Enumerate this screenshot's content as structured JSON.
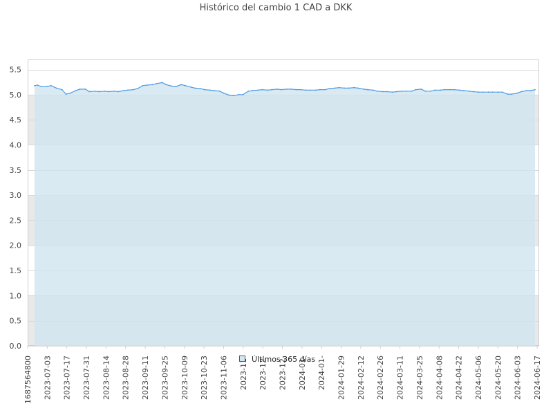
{
  "chart_data": {
    "type": "area",
    "title": "Histórico del cambio 1 CAD a DKK",
    "xlabel": "",
    "ylabel": "",
    "ylim": [
      0,
      5.5
    ],
    "yticks": [
      "0.0",
      "0.5",
      "1.0",
      "1.5",
      "2.0",
      "2.5",
      "3.0",
      "3.5",
      "4.0",
      "4.5",
      "5.0",
      "5.5"
    ],
    "xticks": [
      "1687564800",
      "2023-07-03",
      "2023-07-17",
      "2023-07-31",
      "2023-08-14",
      "2023-08-28",
      "2023-09-11",
      "2023-09-25",
      "2023-10-09",
      "2023-10-23",
      "2023-11-06",
      "2023-11-",
      "2023-12-",
      "2023-12-",
      "2024-01-",
      "2024-01-",
      "2024-01-29",
      "2024-02-12",
      "2024-02-26",
      "2024-03-11",
      "2024-03-25",
      "2024-04-08",
      "2024-04-22",
      "2024-05-06",
      "2024-05-20",
      "2024-06-03",
      "2024-06-17"
    ],
    "grid": true,
    "legend_position": "bottom-center",
    "series": [
      {
        "name": "Últimos 365 días",
        "x": [
          "2023-06-24",
          "2023-06-26",
          "2023-06-29",
          "2023-07-03",
          "2023-07-06",
          "2023-07-10",
          "2023-07-14",
          "2023-07-17",
          "2023-07-20",
          "2023-07-24",
          "2023-07-27",
          "2023-07-31",
          "2023-08-03",
          "2023-08-07",
          "2023-08-10",
          "2023-08-14",
          "2023-08-17",
          "2023-08-21",
          "2023-08-24",
          "2023-08-28",
          "2023-08-31",
          "2023-09-04",
          "2023-09-07",
          "2023-09-11",
          "2023-09-14",
          "2023-09-18",
          "2023-09-21",
          "2023-09-25",
          "2023-09-28",
          "2023-10-02",
          "2023-10-05",
          "2023-10-09",
          "2023-10-12",
          "2023-10-16",
          "2023-10-19",
          "2023-10-23",
          "2023-10-26",
          "2023-10-30",
          "2023-11-02",
          "2023-11-06",
          "2023-11-09",
          "2023-11-13",
          "2023-11-16",
          "2023-11-20",
          "2023-11-23",
          "2023-11-27",
          "2023-11-30",
          "2023-12-04",
          "2023-12-07",
          "2023-12-11",
          "2023-12-14",
          "2023-12-18",
          "2023-12-21",
          "2023-12-25",
          "2023-12-28",
          "2024-01-01",
          "2024-01-04",
          "2024-01-08",
          "2024-01-11",
          "2024-01-15",
          "2024-01-18",
          "2024-01-22",
          "2024-01-25",
          "2024-01-29",
          "2024-02-01",
          "2024-02-05",
          "2024-02-08",
          "2024-02-12",
          "2024-02-15",
          "2024-02-19",
          "2024-02-22",
          "2024-02-26",
          "2024-02-29",
          "2024-03-04",
          "2024-03-07",
          "2024-03-11",
          "2024-03-14",
          "2024-03-18",
          "2024-03-21",
          "2024-03-25",
          "2024-03-28",
          "2024-04-01",
          "2024-04-04",
          "2024-04-08",
          "2024-04-11",
          "2024-04-15",
          "2024-04-18",
          "2024-04-22",
          "2024-04-25",
          "2024-04-29",
          "2024-05-02",
          "2024-05-06",
          "2024-05-09",
          "2024-05-13",
          "2024-05-16",
          "2024-05-20",
          "2024-05-23",
          "2024-05-27",
          "2024-05-30",
          "2024-06-03",
          "2024-06-06",
          "2024-06-10",
          "2024-06-13",
          "2024-06-17",
          "2024-06-20",
          "2024-06-23"
        ],
        "values": [
          5.18,
          5.19,
          5.16,
          5.16,
          5.18,
          5.13,
          5.1,
          5.01,
          5.03,
          5.08,
          5.11,
          5.11,
          5.06,
          5.07,
          5.06,
          5.07,
          5.06,
          5.07,
          5.06,
          5.08,
          5.09,
          5.1,
          5.12,
          5.18,
          5.19,
          5.2,
          5.22,
          5.24,
          5.2,
          5.17,
          5.16,
          5.2,
          5.18,
          5.15,
          5.13,
          5.12,
          5.1,
          5.09,
          5.08,
          5.07,
          5.03,
          4.99,
          4.98,
          5.0,
          5.0,
          5.07,
          5.08,
          5.09,
          5.1,
          5.09,
          5.1,
          5.11,
          5.1,
          5.11,
          5.11,
          5.1,
          5.1,
          5.09,
          5.09,
          5.09,
          5.1,
          5.1,
          5.12,
          5.13,
          5.14,
          5.13,
          5.13,
          5.14,
          5.13,
          5.11,
          5.1,
          5.09,
          5.07,
          5.06,
          5.06,
          5.05,
          5.06,
          5.07,
          5.07,
          5.07,
          5.1,
          5.11,
          5.07,
          5.07,
          5.09,
          5.09,
          5.1,
          5.1,
          5.1,
          5.09,
          5.08,
          5.07,
          5.06,
          5.05,
          5.05,
          5.05,
          5.05,
          5.05,
          5.05,
          5.01,
          5.01,
          5.03,
          5.06,
          5.08,
          5.08,
          5.1
        ]
      }
    ],
    "colors": {
      "line": "#4d9be6",
      "fill": "#cfe5f0",
      "band": "#e9e9e9",
      "grid": "#d8d8d8",
      "legend_box": "#d4e6f1"
    }
  }
}
